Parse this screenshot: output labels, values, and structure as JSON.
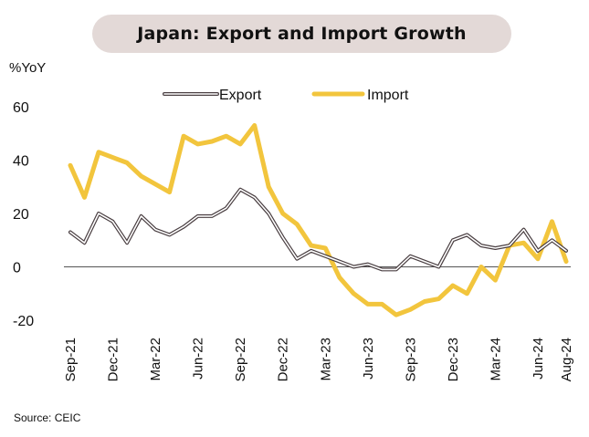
{
  "title": "Japan: Export and Import Growth",
  "unit_label": "%YoY",
  "source": "Source: CEIC",
  "chart_data": {
    "type": "line",
    "title": "Japan: Export and Import Growth",
    "ylabel": "%YoY",
    "xlabel": "",
    "ylim": [
      -20,
      60
    ],
    "yticks": [
      60,
      40,
      20,
      0,
      -20
    ],
    "grid": false,
    "legend": "top-center",
    "x": [
      "Sep-21",
      "Oct-21",
      "Nov-21",
      "Dec-21",
      "Jan-22",
      "Feb-22",
      "Mar-22",
      "Apr-22",
      "May-22",
      "Jun-22",
      "Jul-22",
      "Aug-22",
      "Sep-22",
      "Oct-22",
      "Nov-22",
      "Dec-22",
      "Jan-23",
      "Feb-23",
      "Mar-23",
      "Apr-23",
      "May-23",
      "Jun-23",
      "Jul-23",
      "Aug-23",
      "Sep-23",
      "Oct-23",
      "Nov-23",
      "Dec-23",
      "Jan-24",
      "Feb-24",
      "Mar-24",
      "Apr-24",
      "May-24",
      "Jun-24",
      "Jul-24",
      "Aug-24"
    ],
    "xtick_labels": [
      {
        "index": 0,
        "label": "Sep-21"
      },
      {
        "index": 3,
        "label": "Dec-21"
      },
      {
        "index": 6,
        "label": "Mar-22"
      },
      {
        "index": 9,
        "label": "Jun-22"
      },
      {
        "index": 12,
        "label": "Sep-22"
      },
      {
        "index": 15,
        "label": "Dec-22"
      },
      {
        "index": 18,
        "label": "Mar-23"
      },
      {
        "index": 21,
        "label": "Jun-23"
      },
      {
        "index": 24,
        "label": "Sep-23"
      },
      {
        "index": 27,
        "label": "Dec-23"
      },
      {
        "index": 30,
        "label": "Mar-24"
      },
      {
        "index": 33,
        "label": "Jun-24"
      },
      {
        "index": 35,
        "label": "Aug-24"
      }
    ],
    "series": [
      {
        "name": "Export",
        "style": "outlined",
        "color": "#4a3f42",
        "values": [
          13,
          9,
          20,
          17,
          9,
          19,
          14,
          12,
          15,
          19,
          19,
          22,
          29,
          26,
          20,
          11,
          3,
          6,
          4,
          2,
          0,
          1,
          -1,
          -1,
          4,
          2,
          0,
          10,
          12,
          8,
          7,
          8,
          14,
          6,
          10,
          6
        ]
      },
      {
        "name": "Import",
        "style": "solid",
        "color": "#f2c53d",
        "values": [
          38,
          26,
          43,
          41,
          39,
          34,
          31,
          28,
          49,
          46,
          47,
          49,
          46,
          53,
          30,
          20,
          16,
          8,
          7,
          -4,
          -10,
          -14,
          -14,
          -18,
          -16,
          -13,
          -12,
          -7,
          -10,
          0,
          -5,
          8,
          9,
          3,
          17,
          2
        ]
      }
    ]
  }
}
